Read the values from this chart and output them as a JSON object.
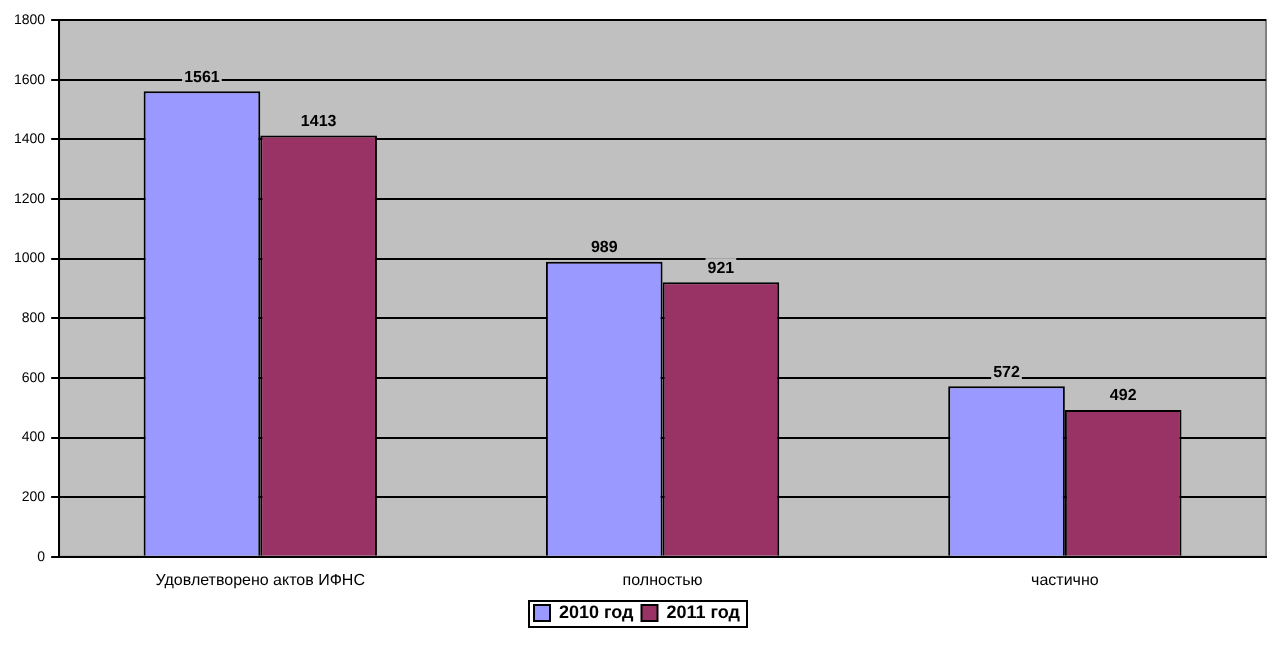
{
  "chart_data": {
    "type": "bar",
    "categories": [
      "Удовлетворено актов ИФНС",
      "полностью",
      "частично"
    ],
    "series": [
      {
        "name": "2010 год",
        "color": "#9999ff",
        "values": [
          1561,
          989,
          572
        ]
      },
      {
        "name": "2011 год",
        "color": "#993366",
        "values": [
          1413,
          921,
          492
        ]
      }
    ],
    "ylim": [
      0,
      1800
    ],
    "yticks": [
      0,
      200,
      400,
      600,
      800,
      1000,
      1200,
      1400,
      1600,
      1800
    ],
    "grid": "y",
    "legend": "bottom",
    "data_labels": true
  }
}
